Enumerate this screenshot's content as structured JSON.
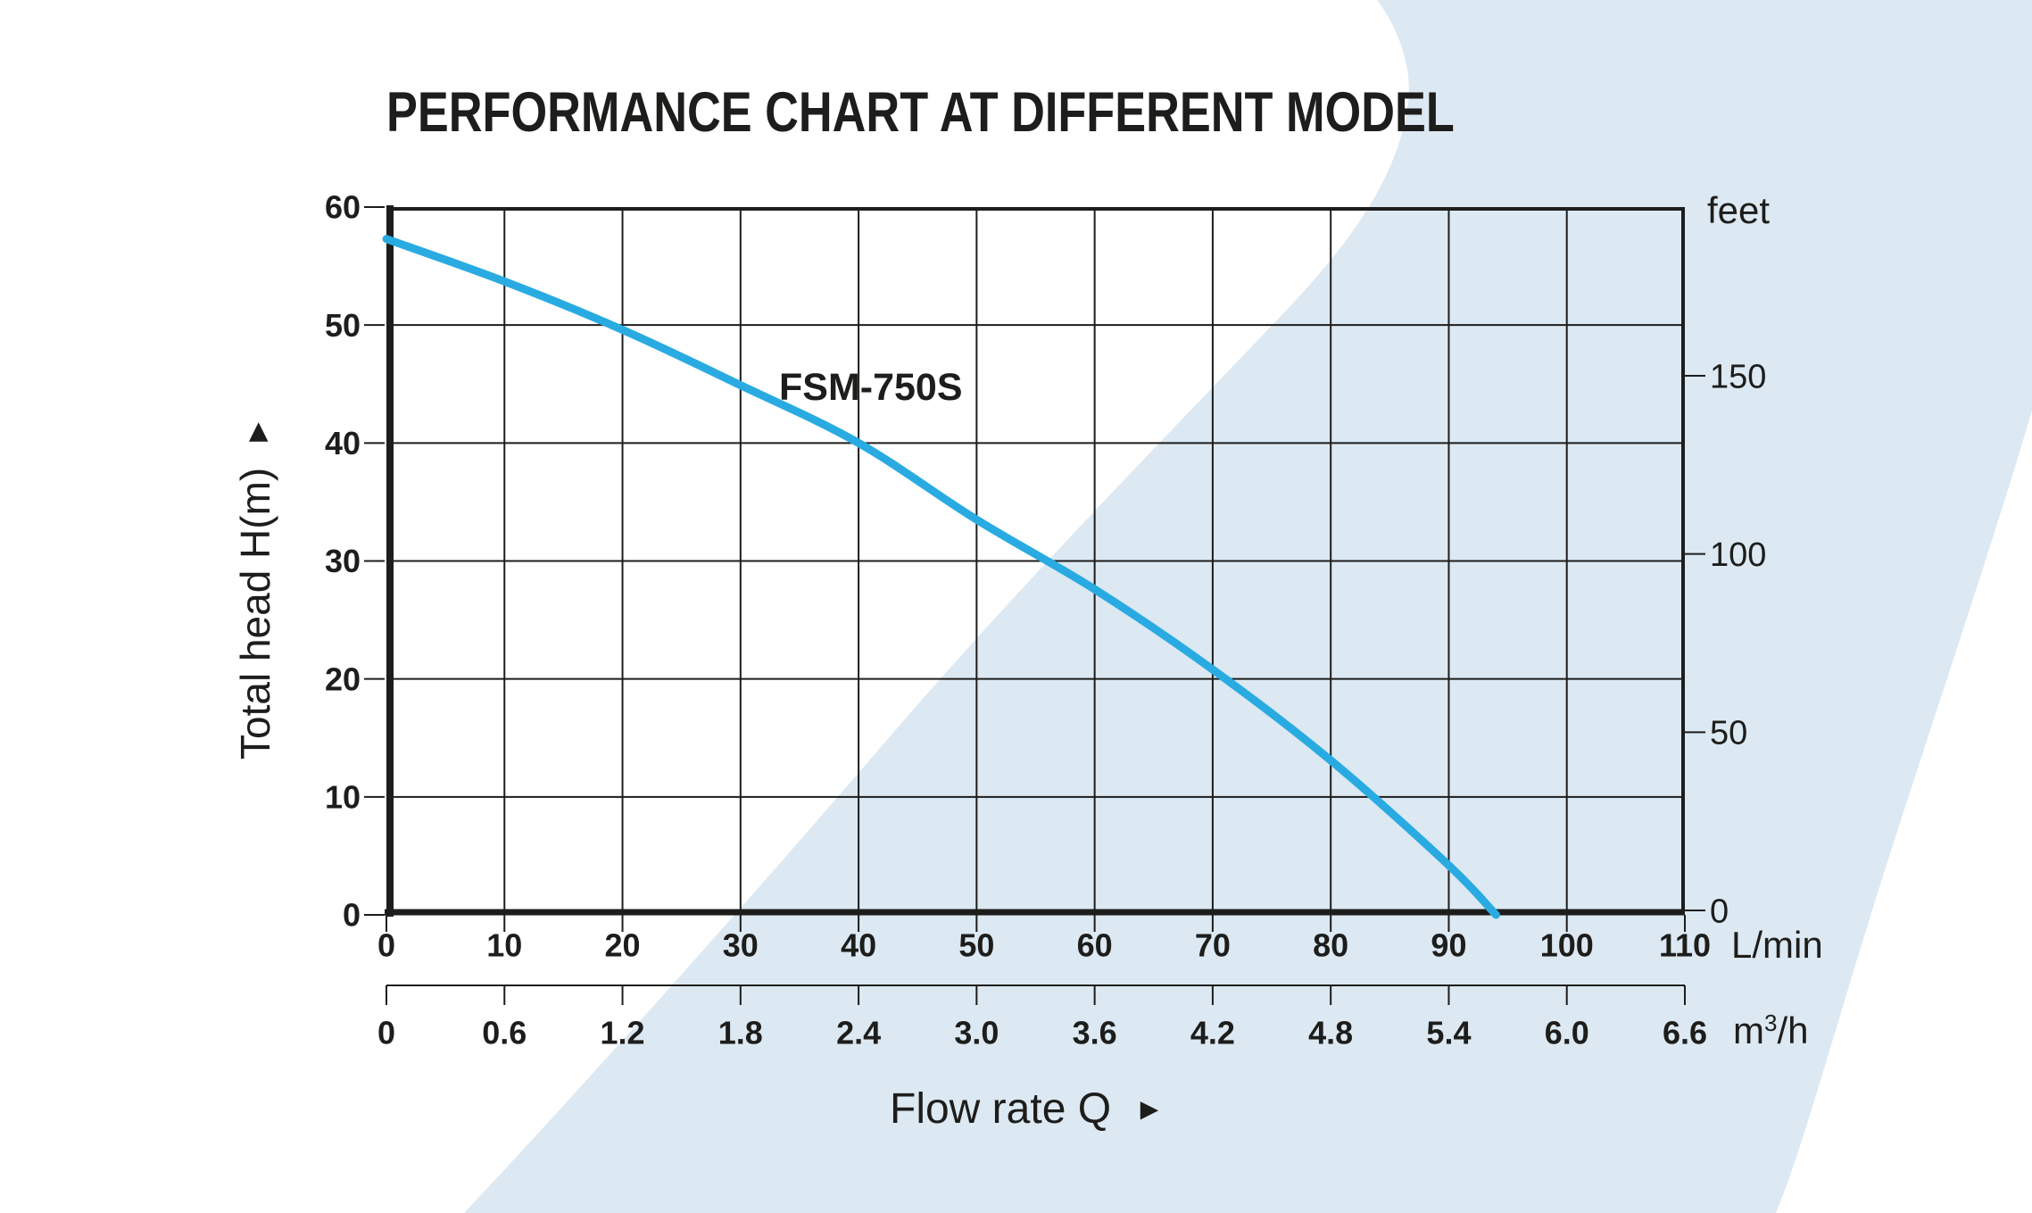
{
  "title": "PERFORMANCE CHART AT DIFFERENT MODEL",
  "colors": {
    "curve": "#29abe2",
    "swoosh_background": "#dce8f2",
    "ink": "#1d1d1b"
  },
  "icons": {
    "up_arrow": "►",
    "right_arrow": "►"
  },
  "labels": {
    "y_axis": "Total head H(m)",
    "x_axis": "Flow rate  Q",
    "unit_right": "feet",
    "unit_x_primary": "L/min",
    "unit_x_secondary_base": "m",
    "unit_x_secondary_sup": "3",
    "unit_x_secondary_rest": "/h",
    "curve_name": "FSM-750S"
  },
  "chart_data": {
    "type": "line",
    "title": "PERFORMANCE CHART AT DIFFERENT MODEL",
    "xlabel": "Flow rate Q",
    "ylabel": "Total head H(m)",
    "grid": true,
    "x_axis_primary": {
      "unit": "L/min",
      "range": [
        0,
        110
      ],
      "tick_labels": [
        "0",
        "10",
        "20",
        "30",
        "40",
        "50",
        "60",
        "70",
        "80",
        "90",
        "100",
        "110"
      ]
    },
    "x_axis_secondary": {
      "unit": "m3/h",
      "range": [
        0,
        6.6
      ],
      "tick_labels": [
        "0",
        "0.6",
        "1.2",
        "1.8",
        "2.4",
        "3.0",
        "3.6",
        "4.2",
        "4.8",
        "5.4",
        "6.0",
        "6.6"
      ]
    },
    "y_axis_left": {
      "unit": "m",
      "range": [
        0,
        60
      ],
      "tick_labels": [
        "60",
        "50",
        "40",
        "30",
        "20",
        "10",
        "0"
      ]
    },
    "y_axis_right": {
      "unit": "feet",
      "tick_values": [
        150,
        100,
        50,
        0
      ],
      "tick_labels": [
        "150",
        "100",
        "50",
        "0"
      ]
    },
    "series": [
      {
        "name": "FSM-750S",
        "color": "#29abe2",
        "points_q_lmin_vs_head_m": [
          [
            0,
            57.3
          ],
          [
            10,
            53.7
          ],
          [
            20,
            49.6
          ],
          [
            30,
            44.9
          ],
          [
            40,
            40.0
          ],
          [
            50,
            33.5
          ],
          [
            60,
            27.6
          ],
          [
            70,
            20.8
          ],
          [
            80,
            13.1
          ],
          [
            90,
            4.2
          ],
          [
            94,
            0
          ]
        ]
      }
    ]
  }
}
